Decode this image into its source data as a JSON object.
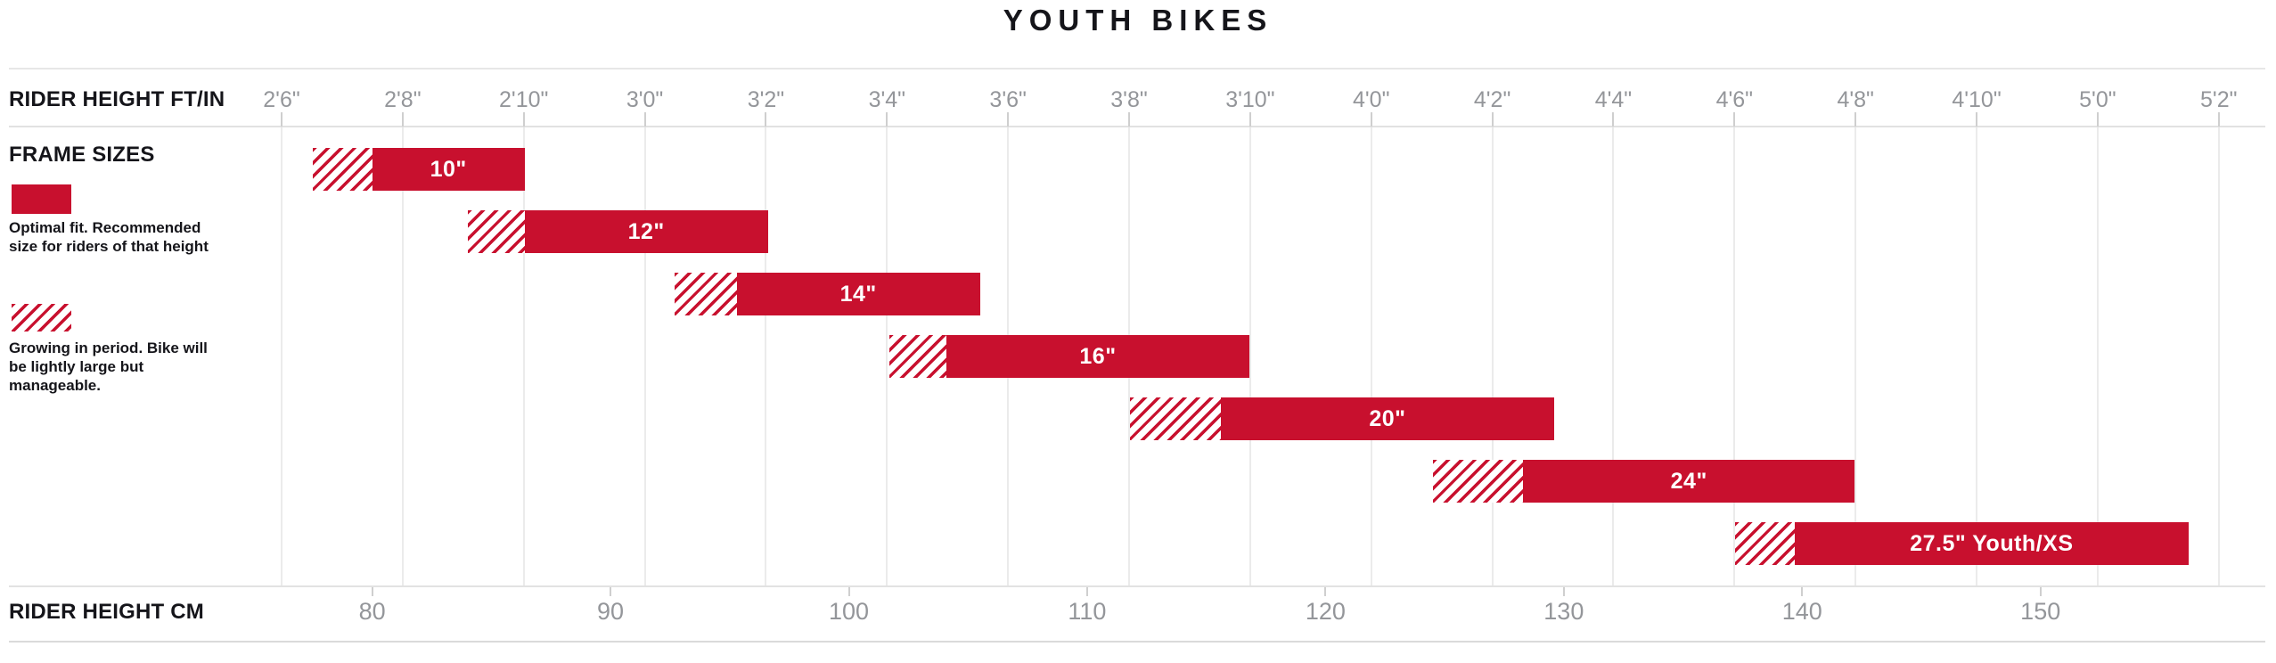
{
  "title": "YOUTH BIKES",
  "colors": {
    "brand_red": "#C8102E",
    "tick_text": "#94969A",
    "grid_line": "#EBEBEB",
    "heading_text": "#15151A"
  },
  "legend": {
    "title": "FRAME SIZES",
    "optimal_text": "Optimal fit. Recommended size for riders of that height",
    "growing_text": "Growing in period. Bike will be lightly large but manageable."
  },
  "chart_data": {
    "type": "bar",
    "title": "YOUTH BIKES",
    "orientation": "horizontal-gantt",
    "grid": "vertical-on",
    "legend_position": "left",
    "x_axis_top": {
      "label": "RIDER HEIGHT FT/IN",
      "unit": "ft/in",
      "ticks": [
        "2'6\"",
        "2'8\"",
        "2'10\"",
        "3'0\"",
        "3'2\"",
        "3'4\"",
        "3'6\"",
        "3'8\"",
        "3'10\"",
        "4'0\"",
        "4'2\"",
        "4'4\"",
        "4'6\"",
        "4'8\"",
        "4'10\"",
        "5'0\"",
        "5'2\""
      ],
      "tick_step_inches": 2,
      "range_cm": [
        76.2,
        157.5
      ]
    },
    "x_axis_bottom": {
      "label": "RIDER HEIGHT CM",
      "unit": "cm",
      "ticks": [
        80,
        90,
        100,
        110,
        120,
        130,
        140,
        150
      ]
    },
    "series_meta": {
      "growing_segment": "Growing in period. Bike will be lightly large but manageable.",
      "optimal_segment": "Optimal fit. Recommended size for riders of that height"
    },
    "series": [
      {
        "size": "10\"",
        "growing_in_cm": [
          77.5,
          80.0
        ],
        "optimal_cm": [
          80.0,
          86.4
        ]
      },
      {
        "size": "12\"",
        "growing_in_cm": [
          84.0,
          86.4
        ],
        "optimal_cm": [
          86.4,
          96.6
        ]
      },
      {
        "size": "14\"",
        "growing_in_cm": [
          92.7,
          95.3
        ],
        "optimal_cm": [
          95.3,
          105.5
        ]
      },
      {
        "size": "16\"",
        "growing_in_cm": [
          101.7,
          104.1
        ],
        "optimal_cm": [
          104.1,
          116.8
        ]
      },
      {
        "size": "20\"",
        "growing_in_cm": [
          111.8,
          115.6
        ],
        "optimal_cm": [
          115.6,
          129.6
        ]
      },
      {
        "size": "24\"",
        "growing_in_cm": [
          124.5,
          128.3
        ],
        "optimal_cm": [
          128.3,
          142.2
        ]
      },
      {
        "size": "27.5\" Youth/XS",
        "growing_in_cm": [
          137.2,
          139.7
        ],
        "optimal_cm": [
          139.7,
          156.2
        ]
      }
    ]
  }
}
